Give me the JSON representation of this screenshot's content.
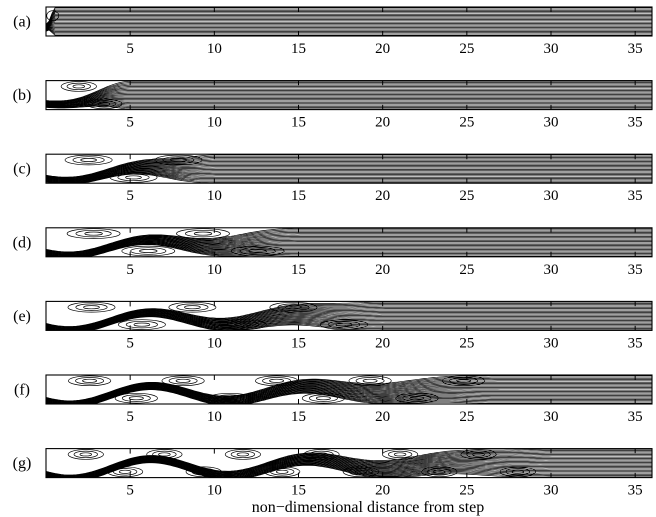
{
  "figure": {
    "xlabel": "non−dimensional distance from step",
    "x_range": [
      0,
      36
    ],
    "x_ticks": [
      5,
      10,
      15,
      20,
      25,
      30,
      35
    ],
    "line_color": "#000000",
    "panels": [
      {
        "label": "(a)",
        "fill_length": 0.5,
        "amplitude": 0.0,
        "recirc": 0
      },
      {
        "label": "(b)",
        "fill_length": 5,
        "amplitude": 0.15,
        "recirc": 2
      },
      {
        "label": "(c)",
        "fill_length": 10,
        "amplitude": 0.22,
        "recirc": 3
      },
      {
        "label": "(d)",
        "fill_length": 15,
        "amplitude": 0.25,
        "recirc": 4
      },
      {
        "label": "(e)",
        "fill_length": 20,
        "amplitude": 0.28,
        "recirc": 6
      },
      {
        "label": "(f)",
        "fill_length": 27,
        "amplitude": 0.3,
        "recirc": 9
      },
      {
        "label": "(g)",
        "fill_length": 30,
        "amplitude": 0.32,
        "recirc": 12
      }
    ]
  }
}
